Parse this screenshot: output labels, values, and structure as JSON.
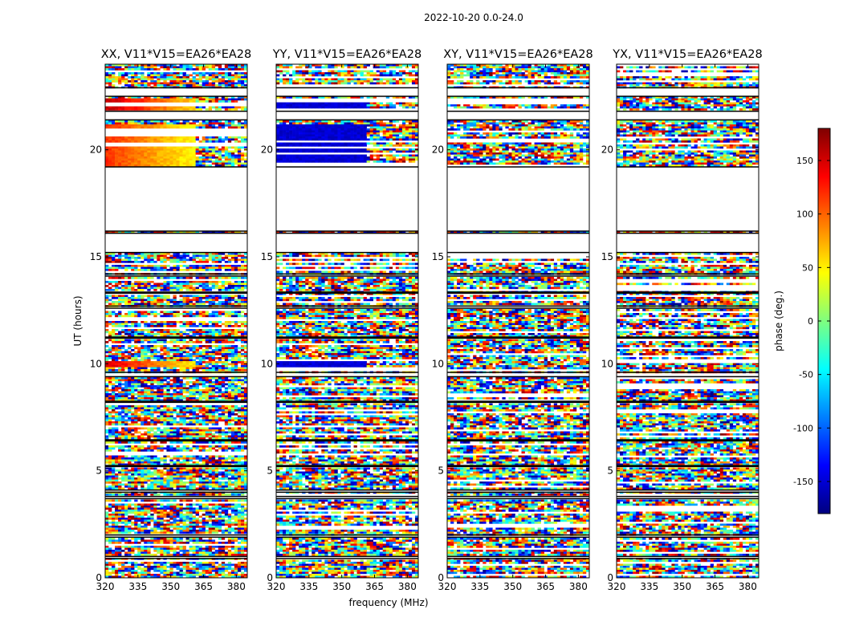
{
  "figure": {
    "suptitle": "2022-10-20 0.0-24.0",
    "xlabel": "frequency (MHz)",
    "ylabel": "UT (hours)"
  },
  "chart_data": {
    "type": "heatmap",
    "x": {
      "label": "frequency (MHz)",
      "range": [
        320,
        385
      ],
      "ticks": [
        320,
        335,
        350,
        365,
        380
      ]
    },
    "y": {
      "label": "UT (hours)",
      "range": [
        0,
        24
      ],
      "ticks": [
        0,
        5,
        10,
        15,
        20
      ]
    },
    "panels": [
      {
        "title": "XX, V11*V15=EA26*EA28",
        "smooth_segments": [
          {
            "y_range": [
              19.2,
              21.2
            ],
            "f_range": [
              320,
              361
            ],
            "phase_start": 120,
            "phase_end": 45
          },
          {
            "y_range": [
              21.8,
              22.4
            ],
            "f_range": [
              320,
              361
            ],
            "phase_start": 160,
            "phase_end": 60
          },
          {
            "y_range": [
              9.8,
              10.1
            ],
            "f_range": [
              320,
              361
            ],
            "phase_start": 150,
            "phase_end": 50
          }
        ]
      },
      {
        "title": "YY, V11*V15=EA26*EA28",
        "smooth_segments": [
          {
            "y_range": [
              19.2,
              21.2
            ],
            "f_range": [
              320,
              361
            ],
            "phase_start": -150,
            "phase_end": -150
          },
          {
            "y_range": [
              21.8,
              22.4
            ],
            "f_range": [
              320,
              361
            ],
            "phase_start": -150,
            "phase_end": -150
          },
          {
            "y_range": [
              9.8,
              10.1
            ],
            "f_range": [
              320,
              361
            ],
            "phase_start": -150,
            "phase_end": -150
          }
        ]
      },
      {
        "title": "XY, V11*V15=EA26*EA28",
        "smooth_segments": []
      },
      {
        "title": "YX, V11*V15=EA26*EA28",
        "smooth_segments": []
      }
    ],
    "empty_intervals_hours": [
      [
        16.2,
        19.2
      ],
      [
        21.4,
        21.8
      ],
      [
        22.5,
        22.9
      ],
      [
        15.2,
        16.1
      ],
      [
        9.4,
        9.6
      ],
      [
        12.6,
        12.7
      ],
      [
        14.1,
        14.2
      ],
      [
        3.7,
        3.8
      ],
      [
        1.9,
        2.0
      ],
      [
        0.9,
        1.0
      ],
      [
        4.0,
        4.1
      ],
      [
        13.3,
        13.35
      ],
      [
        11.2,
        11.25
      ],
      [
        8.2,
        8.25
      ],
      [
        6.4,
        6.45
      ],
      [
        5.2,
        5.25
      ]
    ],
    "colorbar": {
      "label": "phase (deg.)",
      "range": [
        -180,
        180
      ],
      "ticks": [
        150,
        100,
        50,
        0,
        -50,
        -100,
        -150
      ],
      "colormap": "jet",
      "colors": [
        "#00007f",
        "#0000ff",
        "#007fff",
        "#00ffff",
        "#7fff7f",
        "#ffff00",
        "#ff7f00",
        "#ff0000",
        "#7f0000"
      ]
    }
  }
}
